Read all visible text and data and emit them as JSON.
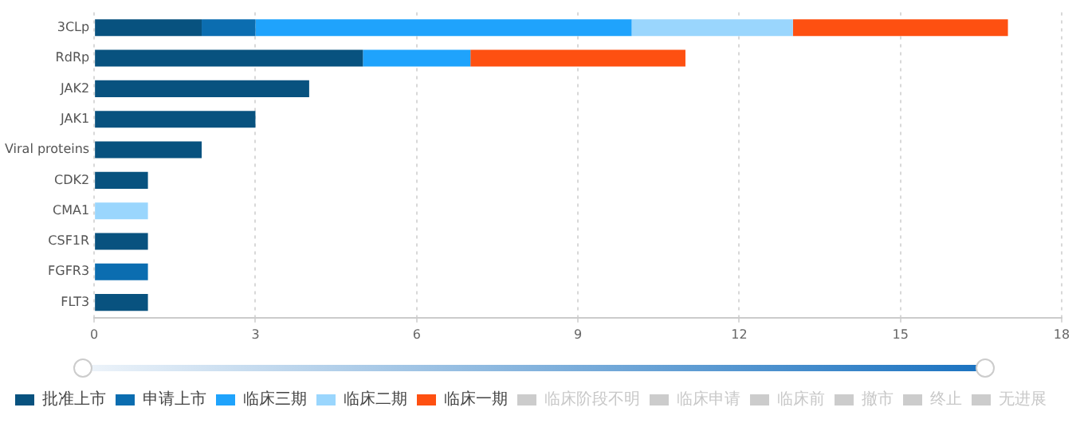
{
  "chart_data": {
    "type": "bar",
    "orientation": "horizontal",
    "stacked": true,
    "categories": [
      "3CLp",
      "RdRp",
      "JAK2",
      "JAK1",
      "Viral proteins",
      "CDK2",
      "CMA1",
      "CSF1R",
      "FGFR3",
      "FLT3"
    ],
    "series": [
      {
        "name": "批准上市",
        "color": "#08527f",
        "values": [
          2,
          5,
          4,
          3,
          2,
          1,
          null,
          1,
          null,
          1
        ]
      },
      {
        "name": "申请上市",
        "color": "#0b6db0",
        "values": [
          1,
          null,
          null,
          null,
          null,
          null,
          null,
          null,
          1,
          null
        ]
      },
      {
        "name": "临床三期",
        "color": "#1fa3fc",
        "values": [
          7,
          2,
          null,
          null,
          null,
          null,
          null,
          null,
          null,
          null
        ]
      },
      {
        "name": "临床二期",
        "color": "#9ad6fd",
        "values": [
          3,
          null,
          null,
          null,
          null,
          null,
          1,
          null,
          null,
          null
        ]
      },
      {
        "name": "临床一期",
        "color": "#fe5011",
        "values": [
          4,
          4,
          null,
          null,
          null,
          null,
          null,
          null,
          null,
          null
        ]
      },
      {
        "name": "临床阶段不明",
        "color": "#cccccc",
        "values": [
          null,
          null,
          null,
          null,
          null,
          null,
          null,
          null,
          null,
          null
        ]
      },
      {
        "name": "临床申请",
        "color": "#cccccc",
        "values": [
          null,
          null,
          null,
          null,
          null,
          null,
          null,
          null,
          null,
          null
        ]
      },
      {
        "name": "临床前",
        "color": "#cccccc",
        "values": [
          null,
          null,
          null,
          null,
          null,
          null,
          null,
          null,
          null,
          null
        ]
      },
      {
        "name": "撤市",
        "color": "#cccccc",
        "values": [
          null,
          null,
          null,
          null,
          null,
          null,
          null,
          null,
          null,
          null
        ]
      },
      {
        "name": "终止",
        "color": "#cccccc",
        "values": [
          null,
          null,
          null,
          null,
          null,
          null,
          null,
          null,
          null,
          null
        ]
      },
      {
        "name": "无进展",
        "color": "#cccccc",
        "values": [
          null,
          null,
          null,
          null,
          null,
          null,
          null,
          null,
          null,
          null
        ]
      }
    ],
    "xlim": [
      0,
      18
    ],
    "xticks": [
      0,
      3,
      6,
      9,
      12,
      15,
      18
    ],
    "grid": "x",
    "legend": "bottom"
  }
}
